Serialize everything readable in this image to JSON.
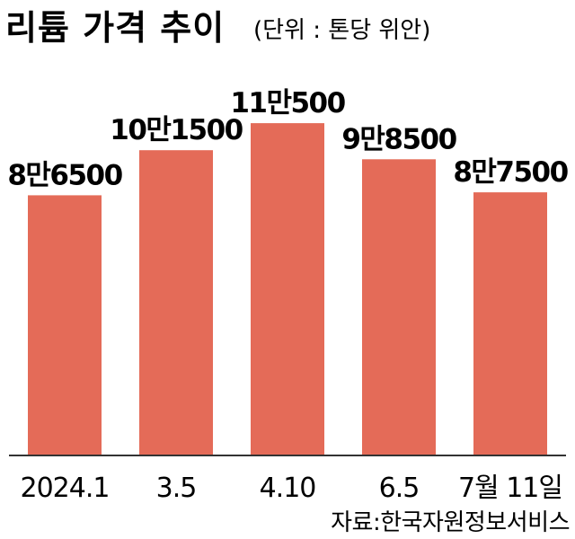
{
  "chart_data": {
    "type": "bar",
    "title": "리튬 가격 추이",
    "subtitle": "(단위 : 톤당 위안)",
    "categories": [
      "2024.1",
      "3.5",
      "4.10",
      "6.5",
      "7월 11일"
    ],
    "values": [
      86500,
      101500,
      110500,
      98500,
      87500
    ],
    "data_labels": [
      "8만6500",
      "10만1500",
      "11만500",
      "9만8500",
      "8만7500"
    ],
    "ylim": [
      0,
      118000
    ],
    "grid": false,
    "legend": "none",
    "bar_color": "#E46B58",
    "source": "자료:한국자원정보서비스"
  }
}
